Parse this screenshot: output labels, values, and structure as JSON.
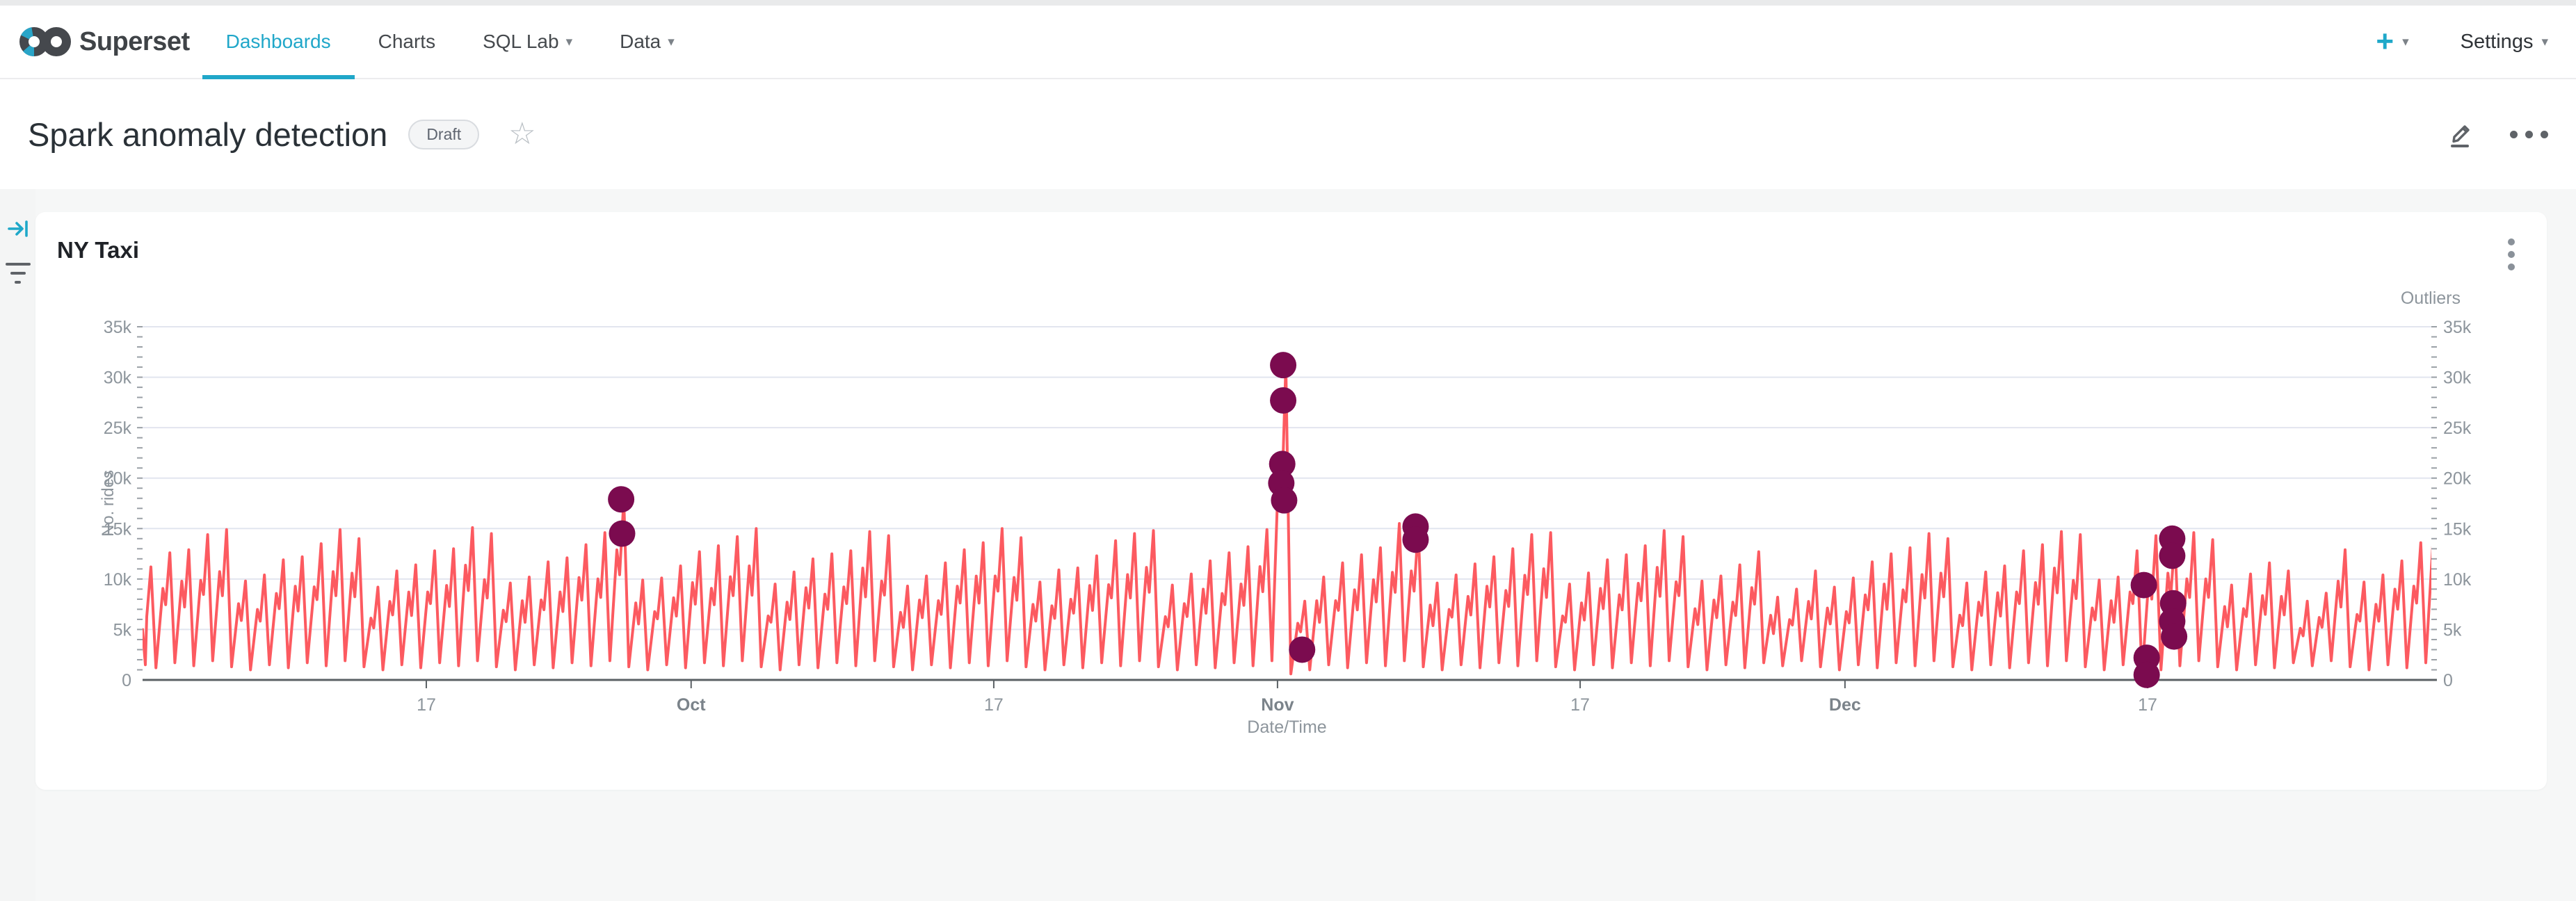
{
  "navbar": {
    "brand": "Superset",
    "tabs": [
      {
        "label": "Dashboards",
        "active": true
      },
      {
        "label": "Charts",
        "active": false
      },
      {
        "label": "SQL Lab",
        "active": false,
        "caret": "▾"
      },
      {
        "label": "Data",
        "active": false,
        "caret": "▾"
      }
    ],
    "plus_label": "+",
    "plus_caret": "▾",
    "settings_label": "Settings",
    "settings_caret": "▾"
  },
  "header": {
    "title": "Spark anomaly detection",
    "status_badge": "Draft"
  },
  "card": {
    "title": "NY Taxi"
  },
  "chart_data": {
    "type": "line",
    "title": "NY Taxi",
    "xlabel": "Date/Time",
    "ylabel": "No. rides",
    "ylabel_right": "Outliers",
    "ylim": [
      0,
      35000
    ],
    "grid": true,
    "legend_position": "none",
    "y_ticks": [
      {
        "v": 0,
        "label": "0"
      },
      {
        "v": 5,
        "label": "5k"
      },
      {
        "v": 10,
        "label": "10k"
      },
      {
        "v": 15,
        "label": "15k"
      },
      {
        "v": 20,
        "label": "20k"
      },
      {
        "v": 25,
        "label": "25k"
      },
      {
        "v": 30,
        "label": "30k"
      },
      {
        "v": 35,
        "label": "35k"
      }
    ],
    "x_ticks": [
      {
        "label": "17",
        "day": 15,
        "bold": false
      },
      {
        "label": "Oct",
        "day": 29,
        "bold": true
      },
      {
        "label": "17",
        "day": 45,
        "bold": false
      },
      {
        "label": "Nov",
        "day": 60,
        "bold": true
      },
      {
        "label": "17",
        "day": 76,
        "bold": false
      },
      {
        "label": "Dec",
        "day": 90,
        "bold": true
      },
      {
        "label": "17",
        "day": 106,
        "bold": false
      }
    ],
    "days_visible": 121,
    "series": {
      "name": "No. rides",
      "start_value_k": 5.0,
      "edge_value_k": 18.0,
      "daily_peaks_k": [
        11.2,
        12.6,
        12.9,
        14.4,
        14.9,
        9.8,
        10.4,
        11.9,
        12.2,
        13.5,
        14.9,
        14.0,
        9.2,
        10.8,
        11.4,
        12.8,
        13.0,
        15.1,
        14.5,
        9.6,
        10.2,
        11.7,
        12.1,
        13.4,
        14.6,
        17.9,
        9.9,
        10.1,
        11.3,
        12.7,
        13.3,
        14.2,
        15.0,
        9.5,
        10.7,
        12.0,
        12.5,
        12.8,
        14.7,
        14.3,
        9.3,
        10.3,
        11.6,
        12.9,
        13.6,
        15.0,
        14.1,
        9.7,
        10.9,
        11.1,
        12.3,
        13.8,
        14.5,
        14.8,
        9.4,
        10.5,
        11.8,
        12.6,
        13.2,
        14.9,
        31.2,
        7.8,
        10.2,
        11.6,
        12.4,
        13.1,
        15.5,
        15.0,
        9.6,
        10.4,
        11.5,
        12.2,
        13.0,
        14.4,
        14.6,
        9.5,
        10.6,
        11.9,
        12.4,
        13.3,
        14.8,
        14.2,
        9.8,
        10.3,
        11.4,
        12.7,
        8.2,
        9.0,
        10.8,
        9.2,
        10.1,
        11.7,
        12.5,
        13.1,
        14.5,
        14.0,
        9.6,
        10.7,
        11.3,
        12.8,
        13.4,
        14.7,
        14.4,
        9.9,
        10.2,
        12.8,
        14.3,
        14.0,
        14.6,
        13.9,
        9.4,
        10.5,
        11.6,
        10.8,
        7.8,
        8.6,
        12.9,
        9.7,
        10.4,
        11.8,
        13.6,
        18.5
      ],
      "trough_pattern_k": [
        1.5,
        1.2,
        1.7,
        1.4,
        1.9,
        1.3,
        1.0
      ],
      "trough_overrides_k": {
        "61": 0.6,
        "106": 0.5,
        "107": 1.0
      }
    },
    "outliers": {
      "name": "Outliers",
      "points": [
        {
          "day": 25.3,
          "value_k": 17.9
        },
        {
          "day": 25.35,
          "value_k": 14.5
        },
        {
          "day": 60.3,
          "value_k": 31.2
        },
        {
          "day": 60.3,
          "value_k": 27.7
        },
        {
          "day": 60.25,
          "value_k": 21.4
        },
        {
          "day": 60.2,
          "value_k": 19.5
        },
        {
          "day": 60.35,
          "value_k": 17.8
        },
        {
          "day": 61.3,
          "value_k": 3.0
        },
        {
          "day": 67.3,
          "value_k": 15.2
        },
        {
          "day": 67.3,
          "value_k": 13.9
        },
        {
          "day": 105.8,
          "value_k": 9.4
        },
        {
          "day": 105.95,
          "value_k": 2.2
        },
        {
          "day": 105.95,
          "value_k": 0.5
        },
        {
          "day": 107.3,
          "value_k": 14.0
        },
        {
          "day": 107.3,
          "value_k": 12.3
        },
        {
          "day": 107.35,
          "value_k": 7.6
        },
        {
          "day": 107.3,
          "value_k": 5.8
        },
        {
          "day": 107.4,
          "value_k": 4.3
        }
      ]
    },
    "colors": {
      "line": "#fc5a60",
      "outlier": "#7b0b4f",
      "grid": "#e2e5ef",
      "axis": "#5b6165",
      "tick": "#9aa0a6",
      "label": "#8d959c",
      "month_label": "#7b838a",
      "accent": "#20a7c9"
    }
  }
}
